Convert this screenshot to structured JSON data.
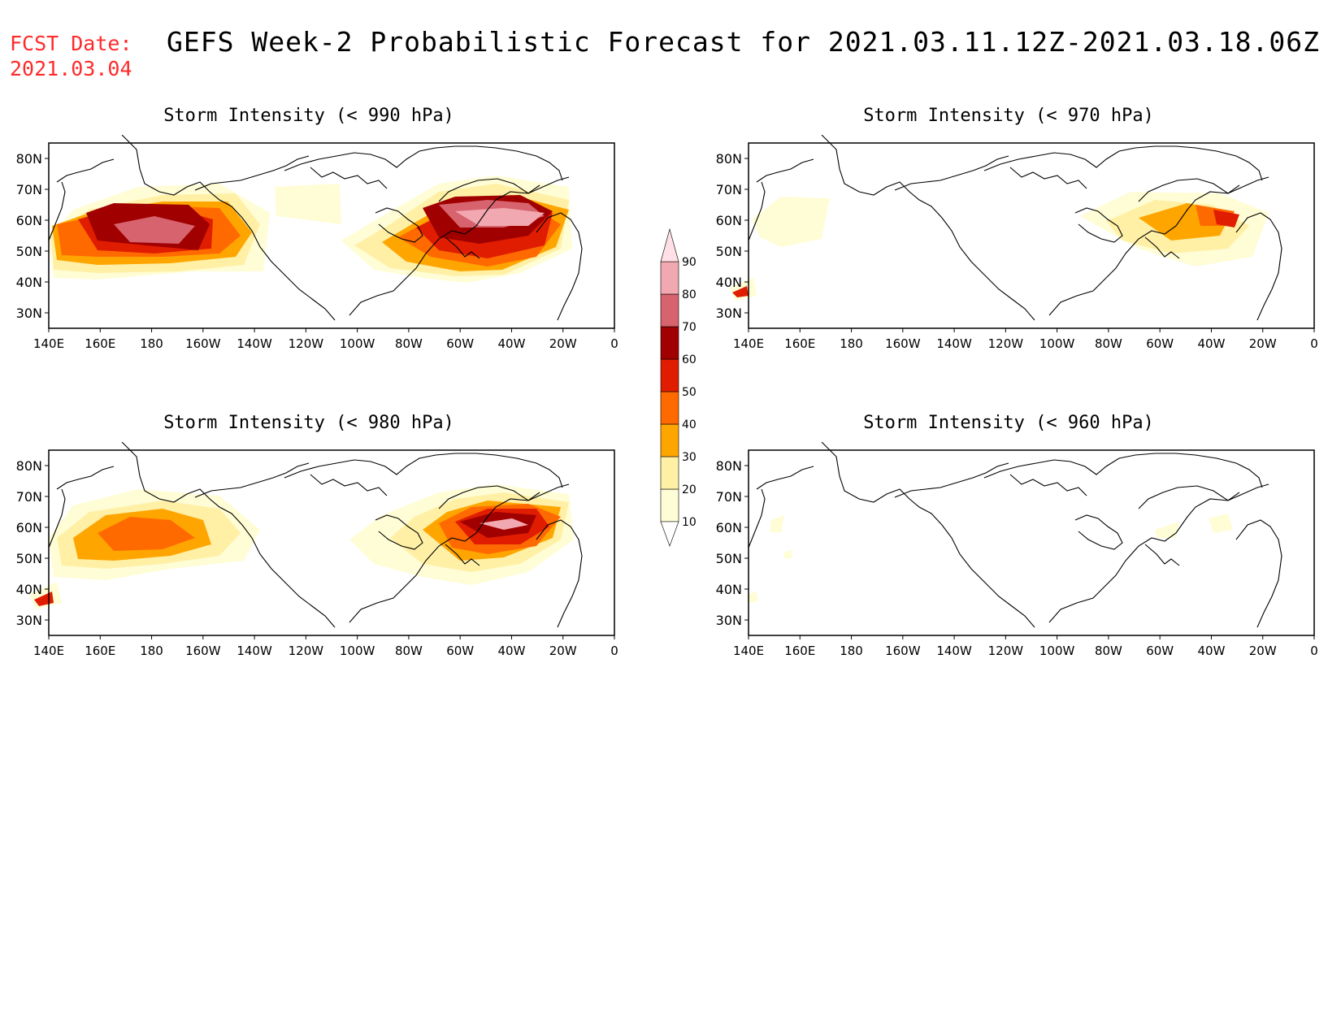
{
  "header": {
    "fcst_label": "FCST Date:",
    "fcst_date": "2021.03.04",
    "title": "GEFS Week-2 Probabilistic Forecast for 2021.03.11.12Z-2021.03.18.06Z"
  },
  "axes": {
    "lat_labels": [
      "80N",
      "70N",
      "60N",
      "50N",
      "40N",
      "30N"
    ],
    "lon_labels": [
      "140E",
      "160E",
      "180",
      "160W",
      "140W",
      "120W",
      "100W",
      "80W",
      "60W",
      "40W",
      "20W",
      "0"
    ]
  },
  "panels": [
    {
      "id": "p990",
      "title": "Storm Intensity (< 990 hPa)"
    },
    {
      "id": "p970",
      "title": "Storm Intensity (< 970 hPa)"
    },
    {
      "id": "p980",
      "title": "Storm Intensity (< 980 hPa)"
    },
    {
      "id": "p960",
      "title": "Storm Intensity (< 960 hPa)"
    }
  ],
  "legend": {
    "levels": [
      "10",
      "20",
      "30",
      "40",
      "50",
      "60",
      "70",
      "80",
      "90"
    ],
    "colors": [
      "#fffdd6",
      "#fff0a6",
      "#ffa500",
      "#ff6a00",
      "#e01d00",
      "#a00000",
      "#d6636e",
      "#f2a8b0",
      "#ffe0e6"
    ]
  },
  "colors": {
    "date_red": "#ff2a2a"
  }
}
